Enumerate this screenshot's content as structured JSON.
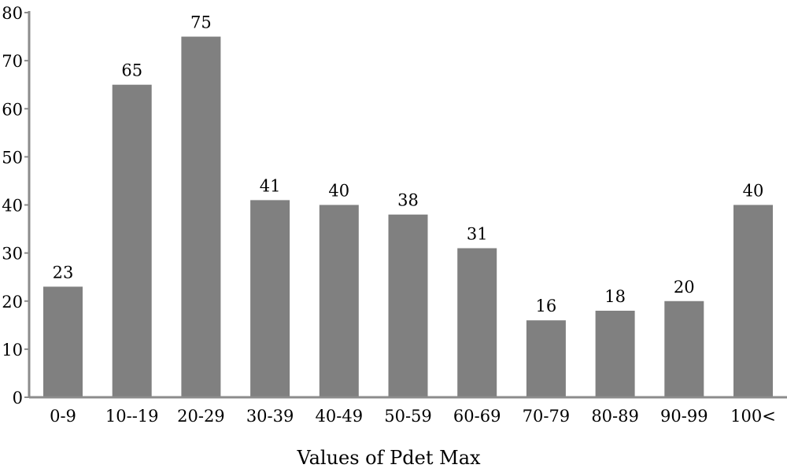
{
  "chart_data": {
    "type": "bar",
    "categories": [
      "0-9",
      "10--19",
      "20-29",
      "30-39",
      "40-49",
      "50-59",
      "60-69",
      "70-79",
      "80-89",
      "90-99",
      "100<"
    ],
    "values": [
      23,
      65,
      75,
      41,
      40,
      38,
      31,
      16,
      18,
      20,
      40
    ],
    "data_labels": [
      "23",
      "65",
      "75",
      "41",
      "40",
      "38",
      "31",
      "16",
      "18",
      "20",
      "40"
    ],
    "xlabel": "Values of Pdet Max",
    "ylabel": "",
    "ylim": [
      0,
      80
    ],
    "yticks": [
      0,
      10,
      20,
      30,
      40,
      50,
      60,
      70,
      80
    ],
    "grid": false,
    "bar_color": "#808080",
    "axis_color": "#8c8c8c"
  }
}
